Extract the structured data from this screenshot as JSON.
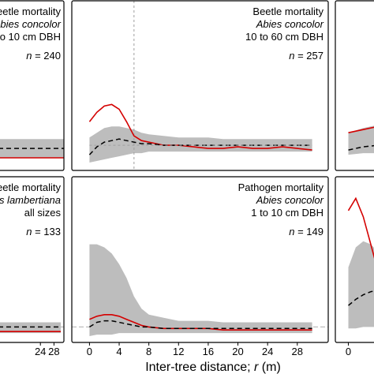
{
  "figure": {
    "xlabel_main": "Inter-tree distance; ",
    "xlabel_italic": "r",
    "xlabel_unit": " (m)"
  },
  "chart_data": [
    {
      "type": "line",
      "panel": "top-left",
      "lines": [
        {
          "text": "eetle mortality",
          "italic": false
        },
        {
          "text": "Abies concolor",
          "italic": true
        },
        {
          "text": "1 to 10 cm DBH",
          "italic": false
        }
      ],
      "n_prefix": "n",
      "n_value": "= 240",
      "xlim": [
        0,
        30
      ],
      "ylim": [
        0,
        1
      ],
      "x": [
        0,
        4,
        8,
        12,
        16,
        20,
        24,
        28,
        30
      ],
      "series": [
        {
          "role": "observed",
          "color": "#d40000",
          "values": [
            0.04,
            0.04,
            0.04,
            0.04,
            0.04,
            0.04,
            0.04,
            0.04,
            0.04
          ]
        },
        {
          "role": "expected",
          "color": "#000000",
          "values": [
            0.1,
            0.1,
            0.1,
            0.1,
            0.1,
            0.1,
            0.1,
            0.1,
            0.1
          ]
        }
      ],
      "envelope": {
        "color": "#bdbdbd",
        "lower": [
          0.04,
          0.04,
          0.04,
          0.04,
          0.04,
          0.04,
          0.04,
          0.04,
          0.04
        ],
        "upper": [
          0.16,
          0.16,
          0.16,
          0.16,
          0.16,
          0.16,
          0.16,
          0.16,
          0.16
        ]
      },
      "reference_y": 0.12
    },
    {
      "type": "line",
      "panel": "top-middle",
      "lines": [
        {
          "text": "Beetle mortality",
          "italic": false
        },
        {
          "text": "Abies concolor",
          "italic": true
        },
        {
          "text": "10 to 60 cm DBH",
          "italic": false
        }
      ],
      "n_prefix": "n",
      "n_value": "= 257",
      "xlim": [
        -1,
        31
      ],
      "ylim": [
        0,
        1
      ],
      "x": [
        0,
        1,
        2,
        3,
        4,
        5,
        6,
        7,
        8,
        10,
        12,
        14,
        16,
        18,
        20,
        22,
        24,
        26,
        28,
        30
      ],
      "series": [
        {
          "role": "observed",
          "color": "#d40000",
          "values": [
            0.27,
            0.33,
            0.37,
            0.38,
            0.35,
            0.27,
            0.18,
            0.15,
            0.14,
            0.12,
            0.12,
            0.11,
            0.1,
            0.1,
            0.11,
            0.1,
            0.1,
            0.11,
            0.1,
            0.09
          ]
        },
        {
          "role": "expected",
          "color": "#000000",
          "values": [
            0.06,
            0.11,
            0.14,
            0.15,
            0.16,
            0.15,
            0.14,
            0.13,
            0.13,
            0.12,
            0.12,
            0.12,
            0.12,
            0.12,
            0.12,
            0.12,
            0.12,
            0.12,
            0.12,
            0.12
          ]
        },
        {
          "role": "dotted-reference",
          "color": "#9e9e9e",
          "values": [
            0.12,
            0.12,
            0.12,
            0.12,
            0.12,
            0.12,
            0.12,
            0.12,
            0.12,
            0.12,
            0.12,
            0.12,
            0.12,
            0.12,
            0.12,
            0.12,
            0.12,
            0.12,
            0.12,
            0.12
          ]
        }
      ],
      "envelope": {
        "color": "#bdbdbd",
        "lower": [
          0.01,
          0.02,
          0.03,
          0.04,
          0.05,
          0.06,
          0.07,
          0.07,
          0.08,
          0.08,
          0.08,
          0.08,
          0.08,
          0.08,
          0.08,
          0.08,
          0.08,
          0.08,
          0.08,
          0.08
        ],
        "upper": [
          0.17,
          0.2,
          0.23,
          0.24,
          0.24,
          0.23,
          0.22,
          0.2,
          0.19,
          0.18,
          0.17,
          0.17,
          0.17,
          0.16,
          0.16,
          0.16,
          0.16,
          0.16,
          0.16,
          0.16
        ]
      },
      "vertical_reference_x": 6
    },
    {
      "type": "line",
      "panel": "top-right",
      "lines": [],
      "n_prefix": "",
      "n_value": "",
      "xlim": [
        -1,
        31
      ],
      "ylim": [
        0,
        1
      ],
      "x": [
        0,
        2,
        4,
        8,
        12
      ],
      "series": [
        {
          "role": "observed",
          "color": "#d40000",
          "values": [
            0.2,
            0.22,
            0.24,
            0.27,
            0.3
          ]
        },
        {
          "role": "expected",
          "color": "#000000",
          "values": [
            0.09,
            0.11,
            0.12,
            0.13,
            0.14
          ]
        }
      ],
      "envelope": {
        "color": "#bdbdbd",
        "lower": [
          0.06,
          0.07,
          0.07,
          0.08,
          0.08
        ],
        "upper": [
          0.2,
          0.23,
          0.25,
          0.27,
          0.28
        ]
      }
    },
    {
      "type": "line",
      "panel": "bottom-left",
      "lines": [
        {
          "text": "eetle mortality",
          "italic": false
        },
        {
          "text": "es lambertiana",
          "italic": true
        },
        {
          "text": "all sizes",
          "italic": false
        }
      ],
      "n_prefix": "n",
      "n_value": "= 133",
      "xlim": [
        0,
        30
      ],
      "ylim": [
        0,
        1
      ],
      "x": [
        0,
        4,
        8,
        12,
        16,
        20,
        24,
        28,
        30
      ],
      "xticks": [
        24,
        28
      ],
      "series": [
        {
          "role": "observed",
          "color": "#d40000",
          "values": [
            0.03,
            0.03,
            0.03,
            0.03,
            0.03,
            0.03,
            0.03,
            0.03,
            0.03
          ]
        },
        {
          "role": "expected",
          "color": "#000000",
          "values": [
            0.06,
            0.06,
            0.06,
            0.06,
            0.06,
            0.06,
            0.06,
            0.06,
            0.06
          ]
        }
      ],
      "envelope": {
        "color": "#bdbdbd",
        "lower": [
          0.02,
          0.02,
          0.02,
          0.02,
          0.02,
          0.02,
          0.02,
          0.02,
          0.02
        ],
        "upper": [
          0.09,
          0.09,
          0.09,
          0.09,
          0.09,
          0.09,
          0.09,
          0.09,
          0.09
        ]
      },
      "reference_y": 0.06
    },
    {
      "type": "line",
      "panel": "bottom-middle",
      "lines": [
        {
          "text": "Pathogen mortality",
          "italic": false
        },
        {
          "text": "Abies concolor",
          "italic": true
        },
        {
          "text": "1 to 10 cm DBH",
          "italic": false
        }
      ],
      "n_prefix": "n",
      "n_value": "= 149",
      "xlim": [
        -1,
        31
      ],
      "ylim": [
        0,
        1
      ],
      "xticks": [
        0,
        4,
        8,
        12,
        16,
        20,
        24,
        28
      ],
      "x": [
        0,
        1,
        2,
        3,
        4,
        5,
        6,
        7,
        8,
        10,
        12,
        14,
        16,
        18,
        20,
        22,
        24,
        26,
        28,
        30
      ],
      "series": [
        {
          "role": "observed",
          "color": "#d40000",
          "values": [
            0.11,
            0.13,
            0.14,
            0.14,
            0.13,
            0.11,
            0.09,
            0.07,
            0.06,
            0.05,
            0.05,
            0.05,
            0.05,
            0.04,
            0.04,
            0.04,
            0.04,
            0.04,
            0.04,
            0.04
          ]
        },
        {
          "role": "expected",
          "color": "#000000",
          "values": [
            0.06,
            0.09,
            0.1,
            0.1,
            0.09,
            0.08,
            0.07,
            0.06,
            0.06,
            0.05,
            0.05,
            0.05,
            0.05,
            0.05,
            0.05,
            0.05,
            0.05,
            0.05,
            0.05,
            0.05
          ]
        }
      ],
      "envelope": {
        "color": "#bdbdbd",
        "lower": [
          0.0,
          0.01,
          0.01,
          0.01,
          0.02,
          0.02,
          0.02,
          0.02,
          0.02,
          0.02,
          0.02,
          0.02,
          0.02,
          0.02,
          0.02,
          0.02,
          0.02,
          0.02,
          0.02,
          0.02
        ],
        "upper": [
          0.6,
          0.6,
          0.58,
          0.54,
          0.47,
          0.38,
          0.26,
          0.18,
          0.14,
          0.12,
          0.1,
          0.1,
          0.1,
          0.09,
          0.09,
          0.09,
          0.09,
          0.09,
          0.09,
          0.09
        ]
      },
      "reference_y": 0.06
    },
    {
      "type": "line",
      "panel": "bottom-right",
      "lines": [],
      "n_prefix": "",
      "n_value": "",
      "xlim": [
        -1,
        31
      ],
      "ylim": [
        0,
        1
      ],
      "xticks": [
        0,
        4
      ],
      "x": [
        0,
        1,
        2,
        3,
        4
      ],
      "series": [
        {
          "role": "observed",
          "color": "#d40000",
          "values": [
            0.82,
            0.9,
            0.78,
            0.6,
            0.42
          ]
        },
        {
          "role": "expected",
          "color": "#000000",
          "values": [
            0.2,
            0.24,
            0.27,
            0.29,
            0.3
          ]
        }
      ],
      "envelope": {
        "color": "#bdbdbd",
        "lower": [
          0.05,
          0.05,
          0.06,
          0.06,
          0.06
        ],
        "upper": [
          0.45,
          0.58,
          0.62,
          0.6,
          0.55
        ]
      }
    }
  ]
}
